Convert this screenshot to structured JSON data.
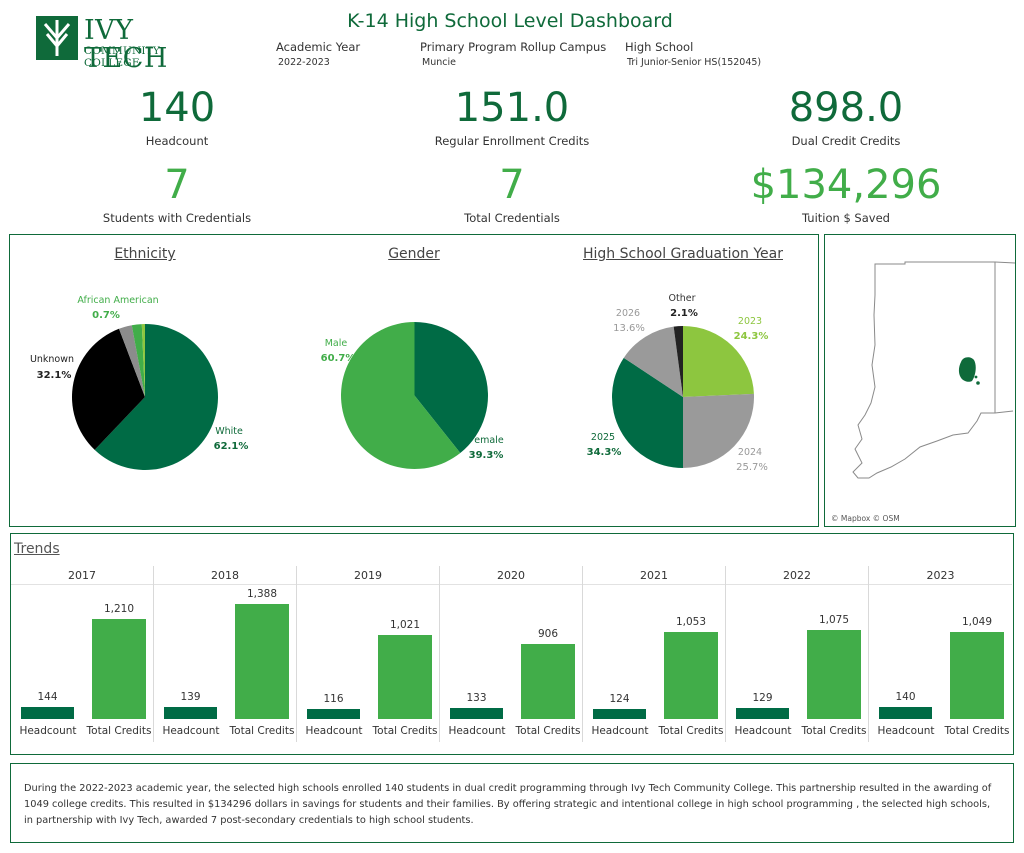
{
  "logo": {
    "name": "IVY TECH",
    "subtitle": "COMMUNITY COLLEGE"
  },
  "title": "K-14 High School Level Dashboard",
  "filters": [
    {
      "label": "Academic Year",
      "value": "2022-2023"
    },
    {
      "label": "Primary Program Rollup Campus",
      "value": "Muncie"
    },
    {
      "label": "High School",
      "value": "Tri Junior-Senior HS(152045)"
    }
  ],
  "kpis": {
    "headcount": {
      "value": "140",
      "label": "Headcount"
    },
    "regular_credits": {
      "value": "151.0",
      "label": "Regular Enrollment Credits"
    },
    "dual_credits": {
      "value": "898.0",
      "label": "Dual Credit Credits"
    },
    "students_credentials": {
      "value": "7",
      "label": "Students with Credentials"
    },
    "total_credentials": {
      "value": "7",
      "label": "Total Credentials"
    },
    "tuition_saved": {
      "value": "$134,296",
      "label": "Tuition $ Saved"
    }
  },
  "ethnicity": {
    "title": "Ethnicity",
    "slices": [
      {
        "name": "White",
        "pct": "62.1%",
        "value": 62.1,
        "color": "#006b45"
      },
      {
        "name": "Unknown",
        "pct": "32.1%",
        "value": 32.1,
        "color": "#000000"
      },
      {
        "name": "",
        "pct": "",
        "value": 2.9,
        "color": "#8c8c8c"
      },
      {
        "name": "",
        "pct": "",
        "value": 2.2,
        "color": "#41ad49"
      },
      {
        "name": "African American",
        "pct": "0.7%",
        "value": 0.7,
        "color": "#8dc63f"
      }
    ]
  },
  "gender": {
    "title": "Gender",
    "slices": [
      {
        "name": "Female",
        "label_visible": "emale",
        "pct": "39.3%",
        "value": 39.3,
        "color": "#006b45"
      },
      {
        "name": "Male",
        "pct": "60.7%",
        "value": 60.7,
        "color": "#41ad49"
      }
    ]
  },
  "grad_year": {
    "title": "High School Graduation Year",
    "slices": [
      {
        "name": "2023",
        "pct": "24.3%",
        "value": 24.3,
        "color": "#8dc63f"
      },
      {
        "name": "2024",
        "pct": "25.7%",
        "value": 25.7,
        "color": "#9a9a9a"
      },
      {
        "name": "2025",
        "pct": "34.3%",
        "value": 34.3,
        "color": "#006b45"
      },
      {
        "name": "2026",
        "pct": "13.6%",
        "value": 13.6,
        "color": "#9a9a9a"
      },
      {
        "name": "Other",
        "pct": "2.1%",
        "value": 2.1,
        "color": "#222222"
      }
    ]
  },
  "map": {
    "attribution": "© Mapbox © OSM"
  },
  "trends": {
    "title": "Trends",
    "headcount_label": "Headcount",
    "credits_label": "Total Credits",
    "headcount_color": "#006b45",
    "credits_color": "#41ad49",
    "ymax": 1450
  },
  "chart_data": {
    "type": "bar",
    "categories": [
      "2017",
      "2018",
      "2019",
      "2020",
      "2021",
      "2022",
      "2023"
    ],
    "series": [
      {
        "name": "Headcount",
        "values": [
          144,
          139,
          116,
          133,
          124,
          129,
          140
        ],
        "labels": [
          "144",
          "139",
          "116",
          "133",
          "124",
          "129",
          "140"
        ]
      },
      {
        "name": "Total Credits",
        "values": [
          1210,
          1388,
          1021,
          906,
          1053,
          1075,
          1049
        ],
        "labels": [
          "1,210",
          "1,388",
          "1,021",
          "906",
          "1,053",
          "1,075",
          "1,049"
        ]
      }
    ]
  },
  "summary": "During the 2022-2023 academic year, the selected high schools enrolled 140 students in dual credit programming through Ivy Tech Community College. This partnership resulted in the awarding of 1049 college credits. This resulted in $134296 dollars in savings for students and their families. By offering strategic and intentional college in high school programming , the selected high schools, in partnership with Ivy Tech, awarded 7 post-secondary credentials to high school students."
}
